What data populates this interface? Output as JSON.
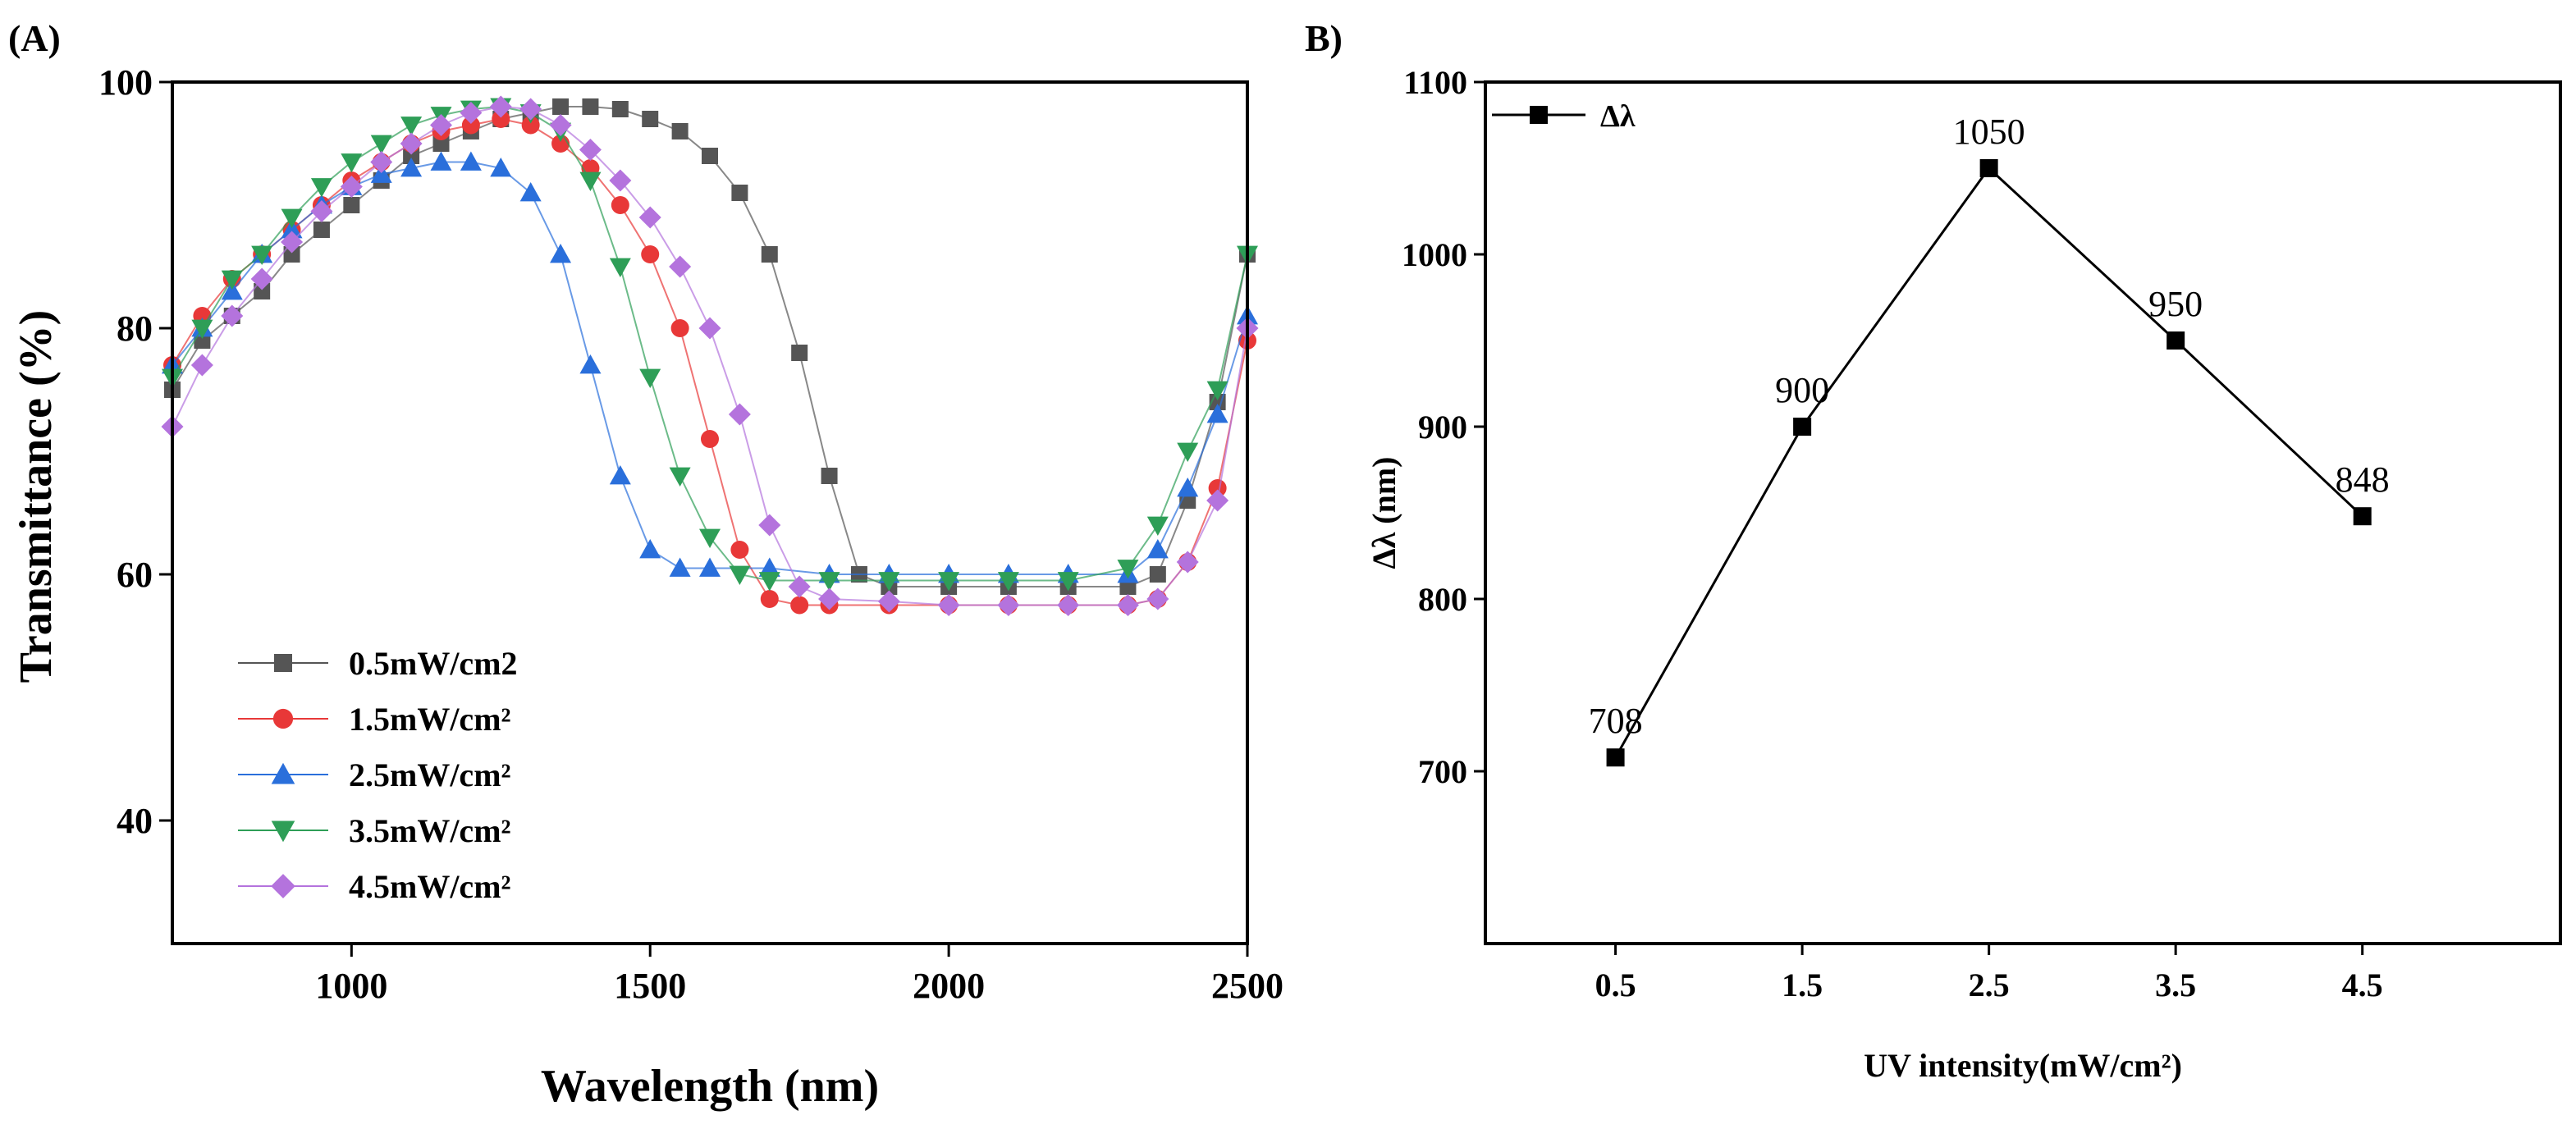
{
  "chart_data": [
    {
      "panel_label": "(A)",
      "type": "scatter",
      "xlabel": "Wavelength (nm)",
      "ylabel": "Transmittance (%)",
      "xlim": [
        700,
        2500
      ],
      "ylim": [
        30,
        100
      ],
      "xticks": [
        1000,
        1500,
        2000,
        2500
      ],
      "xtick_labels": [
        "1000",
        "1500",
        "2000",
        "2500"
      ],
      "yticks": [
        40,
        60,
        80,
        100
      ],
      "ytick_labels": [
        "40",
        "60",
        "80",
        "100"
      ],
      "legend_position": "bottom-left",
      "series": [
        {
          "name": "0.5mW/cm2",
          "color": "#555555",
          "marker": "square",
          "points": [
            [
              700,
              75
            ],
            [
              750,
              79
            ],
            [
              800,
              81
            ],
            [
              850,
              83
            ],
            [
              900,
              86
            ],
            [
              950,
              88
            ],
            [
              1000,
              90
            ],
            [
              1050,
              92
            ],
            [
              1100,
              94
            ],
            [
              1150,
              95
            ],
            [
              1200,
              96
            ],
            [
              1250,
              97
            ],
            [
              1300,
              97.5
            ],
            [
              1350,
              98
            ],
            [
              1400,
              98
            ],
            [
              1450,
              97.8
            ],
            [
              1500,
              97
            ],
            [
              1550,
              96
            ],
            [
              1600,
              94
            ],
            [
              1650,
              91
            ],
            [
              1700,
              86
            ],
            [
              1750,
              78
            ],
            [
              1800,
              68
            ],
            [
              1850,
              60
            ],
            [
              1900,
              59
            ],
            [
              2000,
              59
            ],
            [
              2100,
              59
            ],
            [
              2200,
              59
            ],
            [
              2300,
              59
            ],
            [
              2350,
              60
            ],
            [
              2400,
              66
            ],
            [
              2450,
              74
            ],
            [
              2500,
              86
            ]
          ]
        },
        {
          "name": "1.5mW/cm²",
          "color": "#e83838",
          "marker": "circle",
          "points": [
            [
              700,
              77
            ],
            [
              750,
              81
            ],
            [
              800,
              84
            ],
            [
              850,
              86
            ],
            [
              900,
              88
            ],
            [
              950,
              90
            ],
            [
              1000,
              92
            ],
            [
              1050,
              93.5
            ],
            [
              1100,
              95
            ],
            [
              1150,
              96
            ],
            [
              1200,
              96.5
            ],
            [
              1250,
              97
            ],
            [
              1300,
              96.5
            ],
            [
              1350,
              95
            ],
            [
              1400,
              93
            ],
            [
              1450,
              90
            ],
            [
              1500,
              86
            ],
            [
              1550,
              80
            ],
            [
              1600,
              71
            ],
            [
              1650,
              62
            ],
            [
              1700,
              58
            ],
            [
              1750,
              57.5
            ],
            [
              1800,
              57.5
            ],
            [
              1900,
              57.5
            ],
            [
              2000,
              57.5
            ],
            [
              2100,
              57.5
            ],
            [
              2200,
              57.5
            ],
            [
              2300,
              57.5
            ],
            [
              2350,
              58
            ],
            [
              2400,
              61
            ],
            [
              2450,
              67
            ],
            [
              2500,
              79
            ]
          ]
        },
        {
          "name": "2.5mW/cm²",
          "color": "#2a6fdb",
          "marker": "triangle-up",
          "points": [
            [
              700,
              77
            ],
            [
              750,
              80
            ],
            [
              800,
              83
            ],
            [
              850,
              86
            ],
            [
              900,
              88
            ],
            [
              950,
              90
            ],
            [
              1000,
              91.5
            ],
            [
              1050,
              92.5
            ],
            [
              1100,
              93
            ],
            [
              1150,
              93.5
            ],
            [
              1200,
              93.5
            ],
            [
              1250,
              93
            ],
            [
              1300,
              91
            ],
            [
              1350,
              86
            ],
            [
              1400,
              77
            ],
            [
              1450,
              68
            ],
            [
              1500,
              62
            ],
            [
              1550,
              60.5
            ],
            [
              1600,
              60.5
            ],
            [
              1700,
              60.5
            ],
            [
              1800,
              60
            ],
            [
              1900,
              60
            ],
            [
              2000,
              60
            ],
            [
              2100,
              60
            ],
            [
              2200,
              60
            ],
            [
              2300,
              60
            ],
            [
              2350,
              62
            ],
            [
              2400,
              67
            ],
            [
              2450,
              73
            ],
            [
              2500,
              81
            ]
          ]
        },
        {
          "name": "3.5mW/cm²",
          "color": "#2e9e57",
          "marker": "triangle-down",
          "points": [
            [
              700,
              76
            ],
            [
              750,
              80
            ],
            [
              800,
              84
            ],
            [
              850,
              86
            ],
            [
              900,
              89
            ],
            [
              950,
              91.5
            ],
            [
              1000,
              93.5
            ],
            [
              1050,
              95
            ],
            [
              1100,
              96.5
            ],
            [
              1150,
              97.3
            ],
            [
              1200,
              97.8
            ],
            [
              1250,
              98
            ],
            [
              1300,
              97.5
            ],
            [
              1350,
              96
            ],
            [
              1400,
              92
            ],
            [
              1450,
              85
            ],
            [
              1500,
              76
            ],
            [
              1550,
              68
            ],
            [
              1600,
              63
            ],
            [
              1650,
              60
            ],
            [
              1700,
              59.5
            ],
            [
              1800,
              59.5
            ],
            [
              1900,
              59.5
            ],
            [
              2000,
              59.5
            ],
            [
              2100,
              59.5
            ],
            [
              2200,
              59.5
            ],
            [
              2300,
              60.5
            ],
            [
              2350,
              64
            ],
            [
              2400,
              70
            ],
            [
              2450,
              75
            ],
            [
              2500,
              86
            ]
          ]
        },
        {
          "name": "4.5mW/cm²",
          "color": "#b473dd",
          "marker": "diamond",
          "points": [
            [
              700,
              72
            ],
            [
              750,
              77
            ],
            [
              800,
              81
            ],
            [
              850,
              84
            ],
            [
              900,
              87
            ],
            [
              950,
              89.5
            ],
            [
              1000,
              91.5
            ],
            [
              1050,
              93.5
            ],
            [
              1100,
              95
            ],
            [
              1150,
              96.5
            ],
            [
              1200,
              97.5
            ],
            [
              1250,
              98
            ],
            [
              1300,
              97.8
            ],
            [
              1350,
              96.5
            ],
            [
              1400,
              94.5
            ],
            [
              1450,
              92
            ],
            [
              1500,
              89
            ],
            [
              1550,
              85
            ],
            [
              1600,
              80
            ],
            [
              1650,
              73
            ],
            [
              1700,
              64
            ],
            [
              1750,
              59
            ],
            [
              1800,
              58
            ],
            [
              1900,
              57.8
            ],
            [
              2000,
              57.5
            ],
            [
              2100,
              57.5
            ],
            [
              2200,
              57.5
            ],
            [
              2300,
              57.5
            ],
            [
              2350,
              58
            ],
            [
              2400,
              61
            ],
            [
              2450,
              66
            ],
            [
              2500,
              80
            ]
          ]
        }
      ]
    },
    {
      "panel_label": "B)",
      "type": "line",
      "xlabel": "UV intensity(mW/cm²)",
      "ylabel": "Δλ (nm)",
      "categories": [
        "0.5",
        "1.5",
        "2.5",
        "3.5",
        "4.5"
      ],
      "values": [
        708,
        900,
        1050,
        950,
        848
      ],
      "data_labels": [
        "708",
        "900",
        "1050",
        "950",
        "848"
      ],
      "ylim": [
        600,
        1100
      ],
      "yticks": [
        700,
        800,
        900,
        1000,
        1100
      ],
      "ytick_labels": [
        "700",
        "800",
        "900",
        "1000",
        "1100"
      ],
      "legend_position": "top-left",
      "legend": "Δλ",
      "series_color": "#000000"
    }
  ]
}
